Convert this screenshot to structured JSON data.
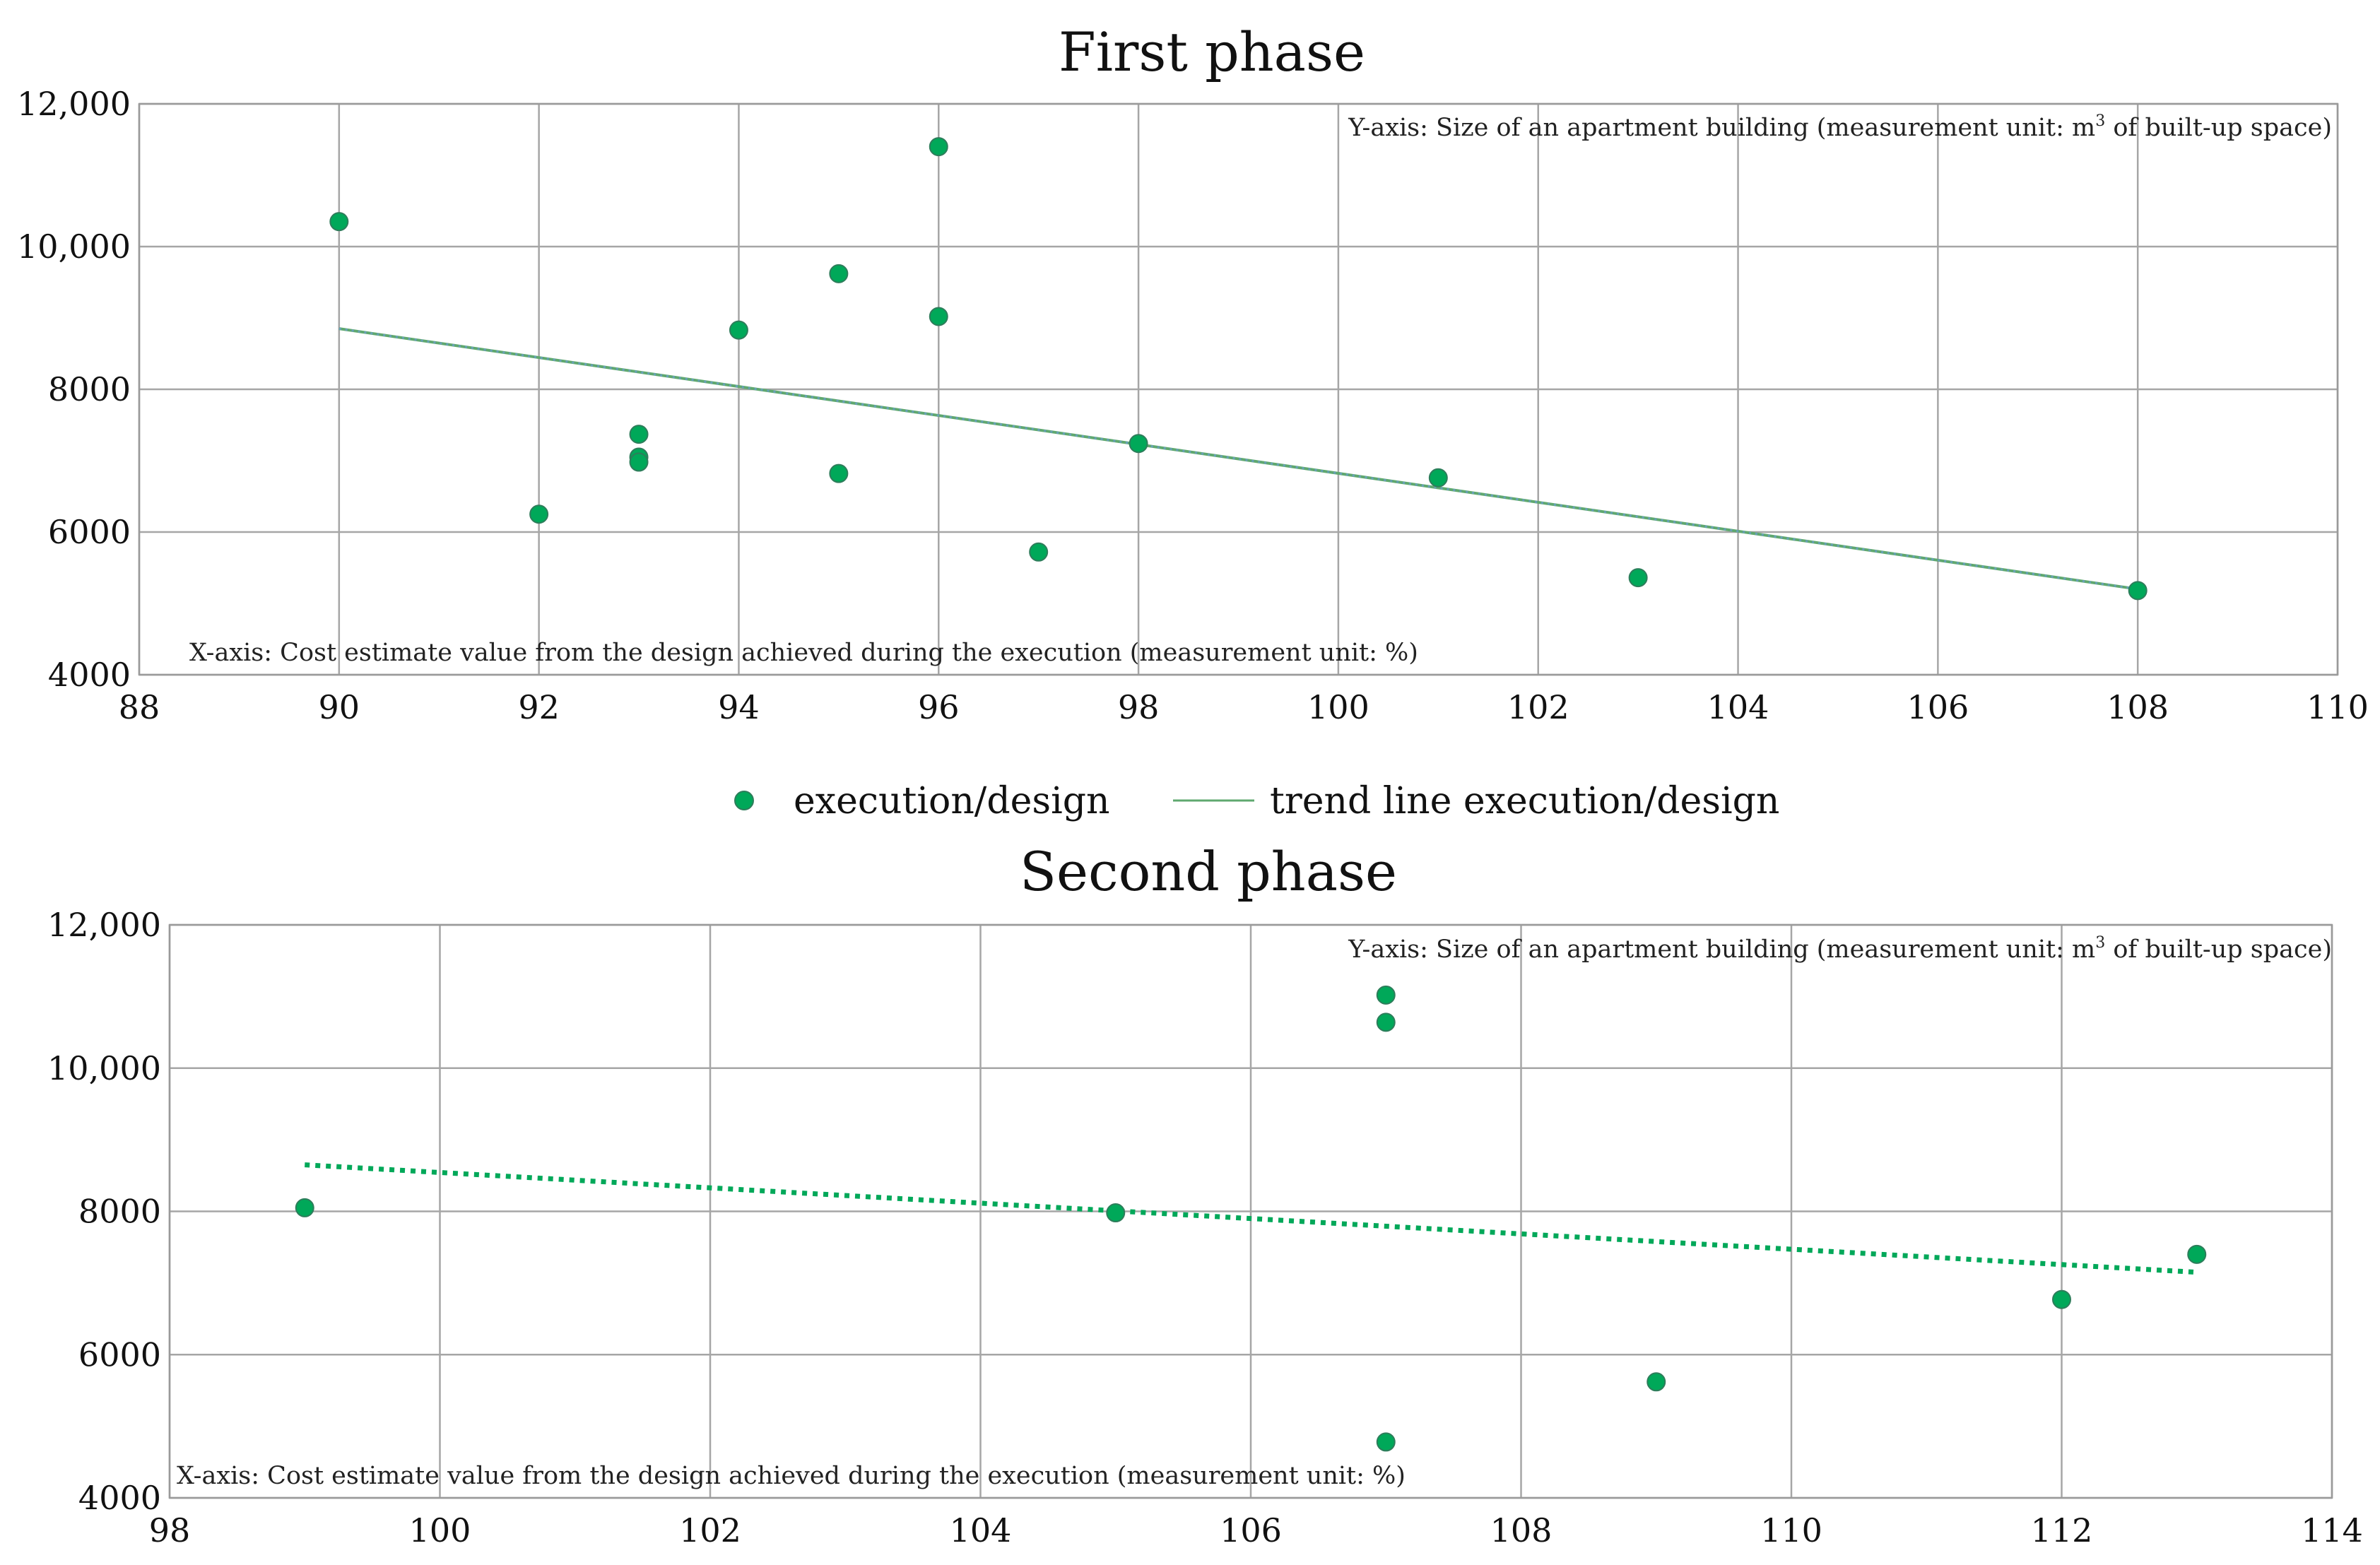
{
  "colors": {
    "marker": "#00A859",
    "marker_edge": "#2E7D5B",
    "trend1": "#5FA86F",
    "trend1_dots": "#6A9FC7",
    "trend2": "#00A859"
  },
  "legend": {
    "series_label": "execution/design",
    "trend_label": "trend line execution/design"
  },
  "chart_data": [
    {
      "type": "scatter",
      "title": "First phase",
      "ylabel_note": {
        "prefix": "Y-axis: Size of an apartment building (measurement unit: m",
        "sup": "3",
        "suffix": " of built-up space)"
      },
      "xlabel_note": "X-axis: Cost estimate value from the design achieved during the execution (measurement unit: %)",
      "xlim": [
        88,
        110
      ],
      "ylim": [
        4000,
        12000
      ],
      "xticks": [
        88,
        90,
        92,
        94,
        96,
        98,
        100,
        102,
        104,
        106,
        108,
        110
      ],
      "yticks": [
        4000,
        6000,
        8000,
        10000,
        12000
      ],
      "ytick_labels": [
        "4000",
        "6000",
        "8000",
        "10,000",
        "12,000"
      ],
      "grid": true,
      "trend_style": "solid",
      "trend": {
        "x": [
          90,
          108
        ],
        "y": [
          8850,
          5200
        ]
      },
      "series": [
        {
          "x": [
            90,
            92,
            93,
            93,
            93,
            94,
            95,
            95,
            96,
            96,
            97,
            98,
            101,
            103,
            108
          ],
          "y": [
            10350,
            6250,
            7370,
            7050,
            6980,
            8830,
            9620,
            6820,
            11400,
            9020,
            5720,
            7240,
            6760,
            5360,
            5180
          ]
        }
      ]
    },
    {
      "type": "scatter",
      "title": "Second phase",
      "ylabel_note": {
        "prefix": "Y-axis: Size of an apartment building (measurement unit: m",
        "sup": "3",
        "suffix": " of built-up space)"
      },
      "xlabel_note": "X-axis: Cost estimate value from the design achieved during the execution (measurement unit: %)",
      "xlim": [
        98,
        114
      ],
      "ylim": [
        4000,
        12000
      ],
      "xticks": [
        98,
        100,
        102,
        104,
        106,
        108,
        110,
        112,
        114
      ],
      "yticks": [
        4000,
        6000,
        8000,
        10000,
        12000
      ],
      "ytick_labels": [
        "4000",
        "6000",
        "8000",
        "10,000",
        "12,000"
      ],
      "grid": true,
      "trend_style": "dotted",
      "trend": {
        "x": [
          99,
          113
        ],
        "y": [
          8650,
          7150
        ]
      },
      "series": [
        {
          "x": [
            99,
            105,
            107,
            107,
            107,
            109,
            112,
            113
          ],
          "y": [
            8050,
            7980,
            11020,
            10640,
            4780,
            5620,
            6770,
            7400
          ]
        }
      ]
    }
  ]
}
